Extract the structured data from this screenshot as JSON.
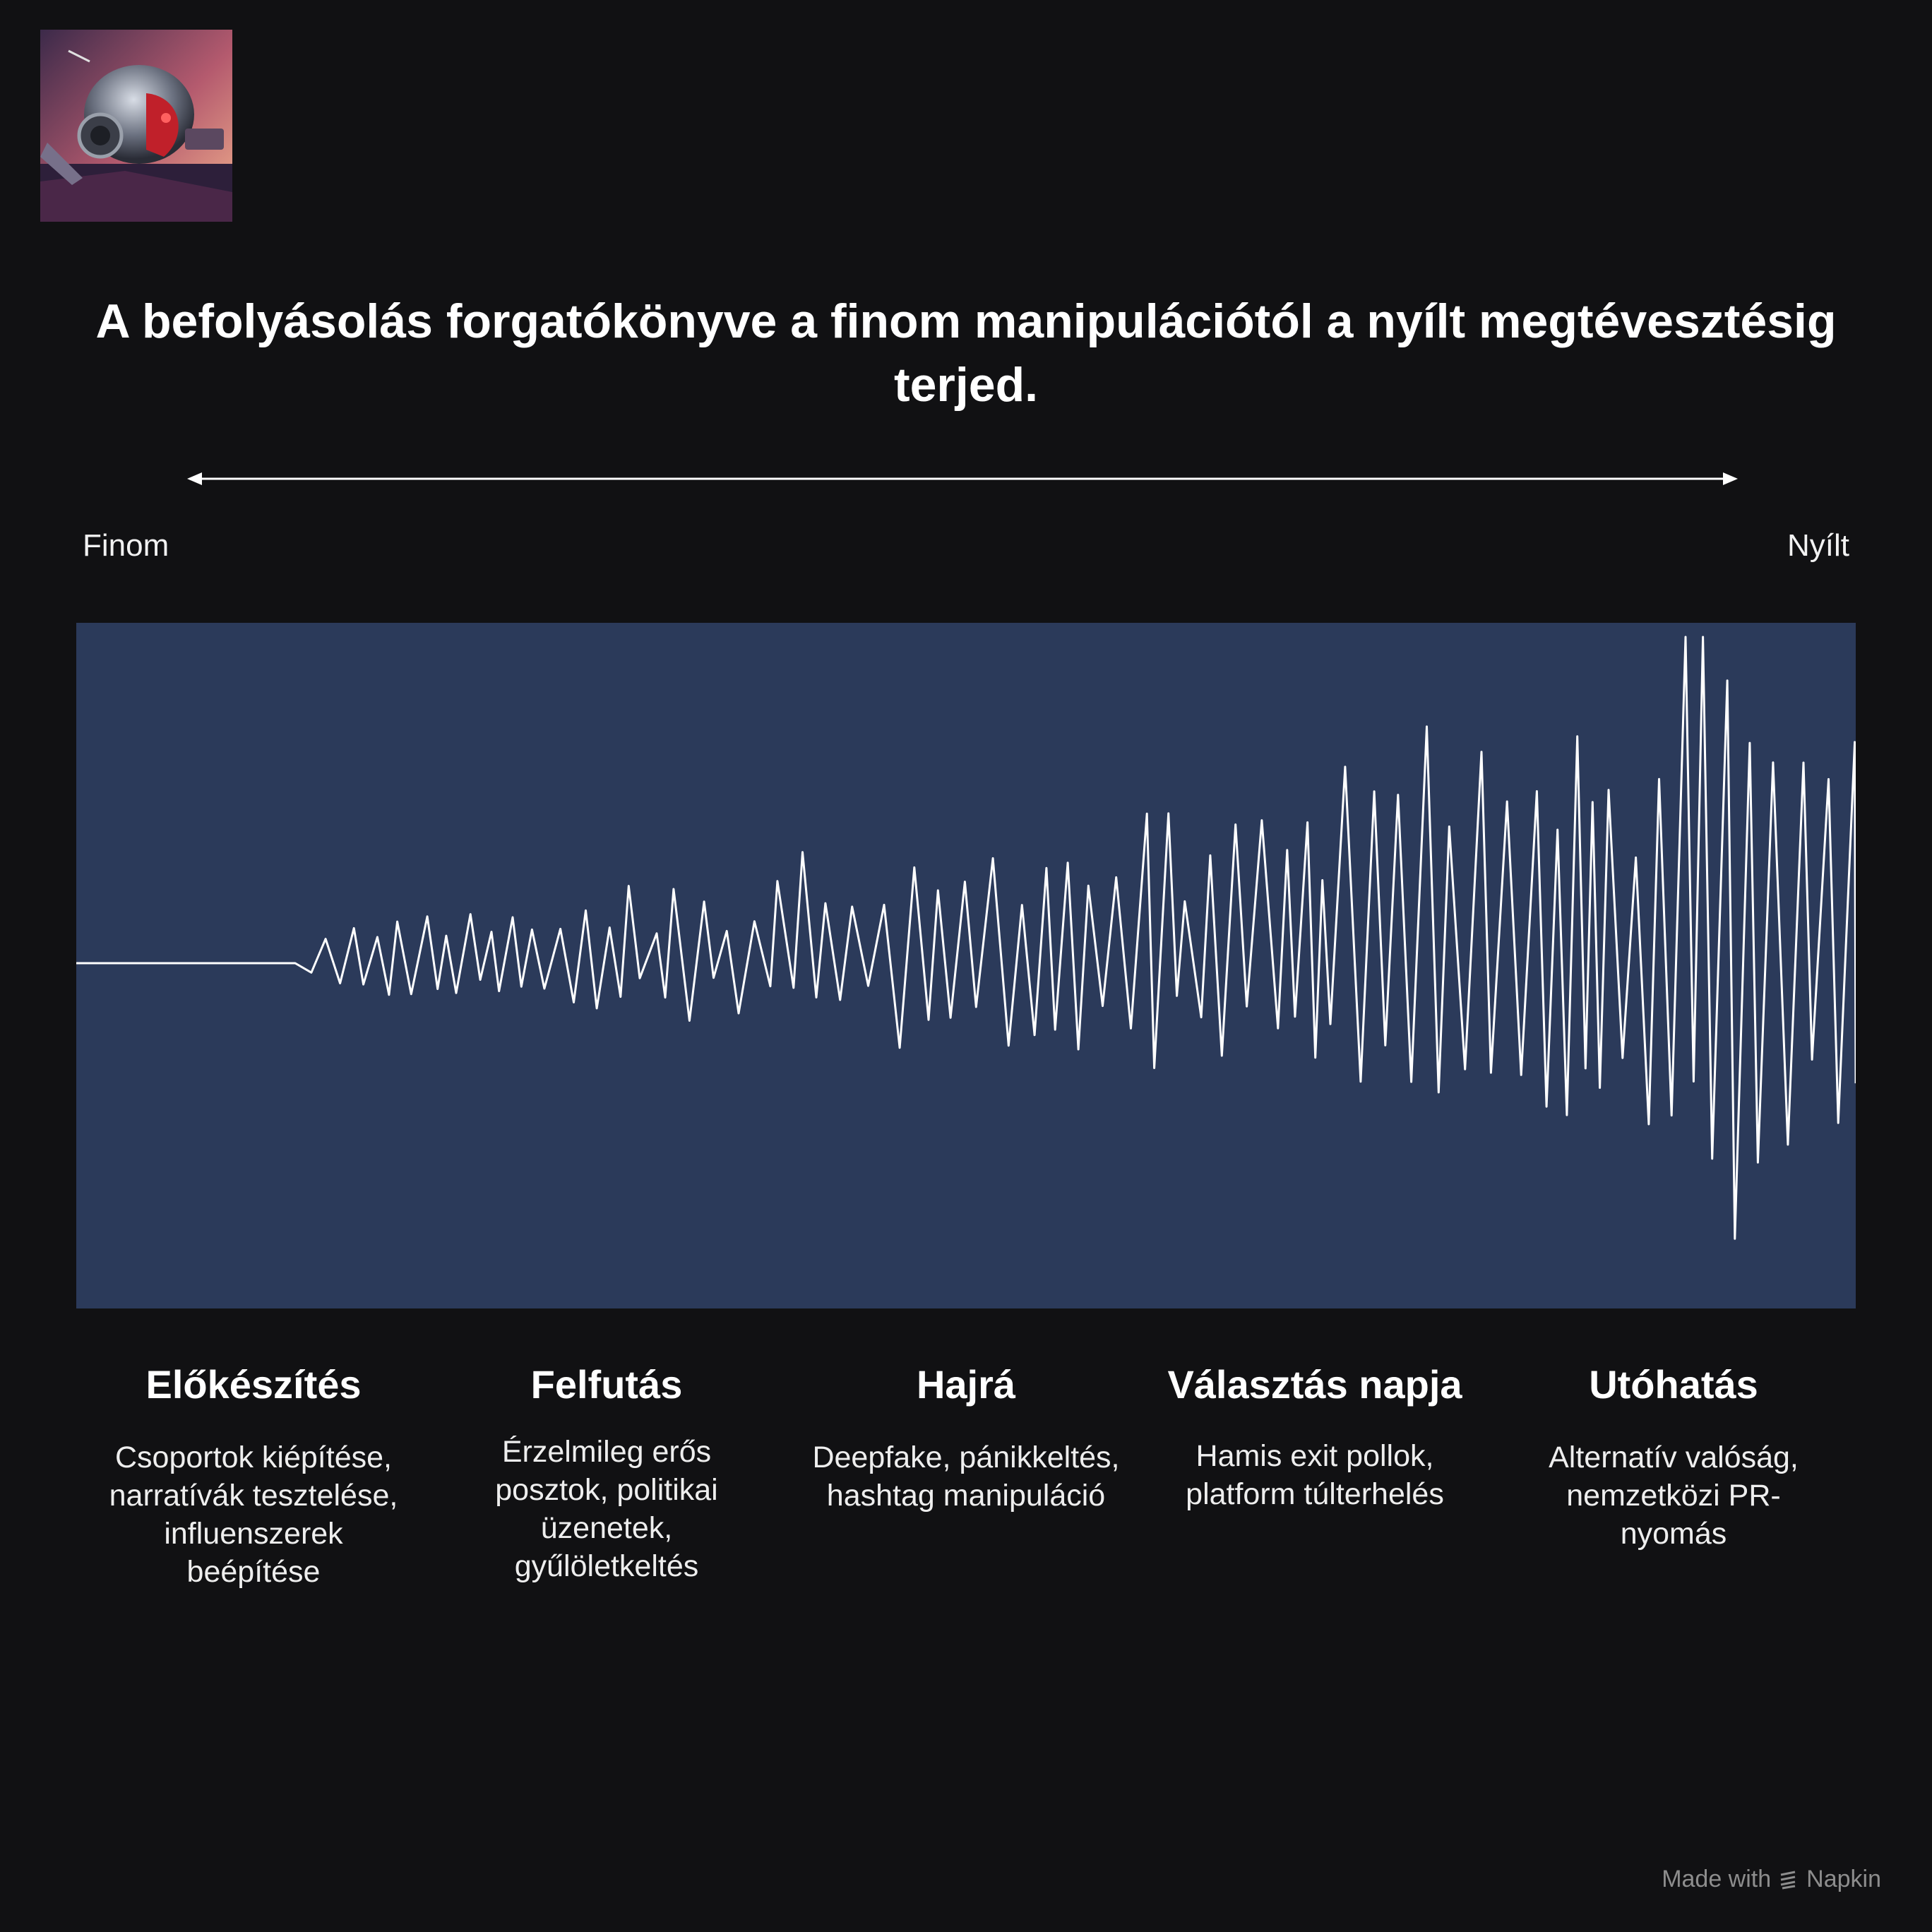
{
  "logo": {
    "icon": "robot-helmet-icon"
  },
  "title": "A befolyásolás forgatókönyve a finom manipulációtól a nyílt megtévesztésig terjed.",
  "scale": {
    "left_label": "Finom",
    "right_label": "Nyílt",
    "icon": "double-arrow-icon"
  },
  "wave": {
    "background": "#2b3a5a",
    "line_color": "#ffffff",
    "icon": "waveform-icon"
  },
  "phases": [
    {
      "title": "Előkészítés",
      "description": "Csoportok kiépítése, narratívák tesztelése, influenszerek beépítése"
    },
    {
      "title": "Felfutás",
      "description": "Érzelmileg erős posztok, politikai üzenetek, gyűlöletkeltés"
    },
    {
      "title": "Hajrá",
      "description": "Deepfake, pánikkeltés, hashtag manipuláció"
    },
    {
      "title": "Választás napja",
      "description": "Hamis exit pollok, platform túlterhelés"
    },
    {
      "title": "Utóhatás",
      "description": "Alternatív valóság, nemzetközi PR-nyomás"
    }
  ],
  "footer": {
    "made_with": "Made with",
    "brand": "Napkin",
    "icon": "napkin-logo-icon"
  },
  "colors": {
    "background": "#111113",
    "panel": "#2b3a5a",
    "text": "#ffffff",
    "footer": "#8d8d8d"
  }
}
